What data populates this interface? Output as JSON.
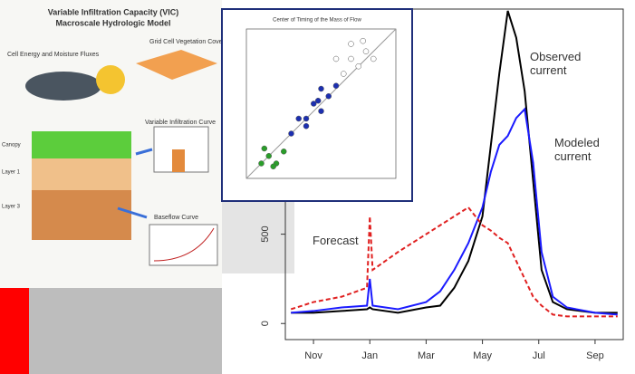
{
  "chart_data": [
    {
      "type": "line",
      "x": [
        0.2,
        1,
        2,
        2.9,
        3,
        3.1,
        4,
        5,
        5.5,
        6,
        6.5,
        7,
        7.3,
        7.6,
        7.9,
        8.2,
        8.5,
        8.8,
        9.1,
        9.5,
        10,
        11,
        11.8
      ],
      "series": [
        {
          "name": "Observed current",
          "color": "#000000",
          "dash": false,
          "values": [
            60,
            60,
            70,
            80,
            90,
            80,
            60,
            90,
            100,
            200,
            350,
            600,
            1000,
            1400,
            1750,
            1600,
            1300,
            800,
            300,
            120,
            80,
            60,
            60
          ]
        },
        {
          "name": "Modeled current",
          "color": "#1a1aff",
          "dash": false,
          "values": [
            60,
            70,
            90,
            100,
            250,
            100,
            80,
            120,
            180,
            300,
            450,
            650,
            850,
            1000,
            1050,
            1150,
            1200,
            900,
            400,
            150,
            90,
            60,
            50
          ]
        },
        {
          "name": "Forecast",
          "color": "#e02020",
          "dash": true,
          "values": [
            80,
            120,
            150,
            200,
            600,
            300,
            400,
            500,
            550,
            600,
            650,
            550,
            520,
            480,
            450,
            350,
            250,
            150,
            100,
            50,
            40,
            40,
            40
          ]
        }
      ],
      "xlim": [
        0,
        12
      ],
      "xticks": [
        {
          "value": 1,
          "label": "Nov"
        },
        {
          "value": 3,
          "label": "Jan"
        },
        {
          "value": 5,
          "label": "Mar"
        },
        {
          "value": 7,
          "label": "May"
        },
        {
          "value": 9,
          "label": "Jul"
        },
        {
          "value": 11,
          "label": "Sep"
        }
      ],
      "ylim": [
        -90,
        1760
      ],
      "yticks": [
        0,
        500
      ]
    },
    {
      "type": "scatter",
      "title": "Center of Timing of the Mass of Flow",
      "xlim": [
        0,
        10
      ],
      "ylim": [
        0,
        10
      ],
      "series": [
        {
          "color": "#2a9d2a",
          "x": [
            1,
            1.5,
            2,
            2.5,
            1.2,
            1.8
          ],
          "values": [
            1,
            1.5,
            1,
            1.8,
            2,
            0.8
          ]
        },
        {
          "color": "#1c2fb0",
          "x": [
            3,
            4,
            4.5,
            5,
            5.5,
            4,
            5,
            6,
            3.5,
            4.8
          ],
          "values": [
            3,
            4,
            5,
            4.5,
            5.5,
            3.5,
            6,
            6.2,
            4,
            5.2
          ]
        },
        {
          "color": "#ffffff",
          "x": [
            6.5,
            7,
            7.5,
            8,
            7,
            8.5,
            6,
            7.8
          ],
          "values": [
            7,
            8,
            7.5,
            8.5,
            9,
            8,
            8,
            9.2
          ]
        }
      ]
    }
  ],
  "diagram": {
    "title": [
      "Variable Infiltration Capacity (VIC)",
      "Macroscale Hydrologic Model"
    ],
    "fluxes": "Cell Energy and Moisture Fluxes",
    "vegetation": "Grid Cell Vegetation Coverage",
    "curve": "Variable Infiltration Curve",
    "baseflow": "Baseflow Curve",
    "layers": [
      "Canopy",
      "Layer 1",
      "Layer 3"
    ]
  }
}
